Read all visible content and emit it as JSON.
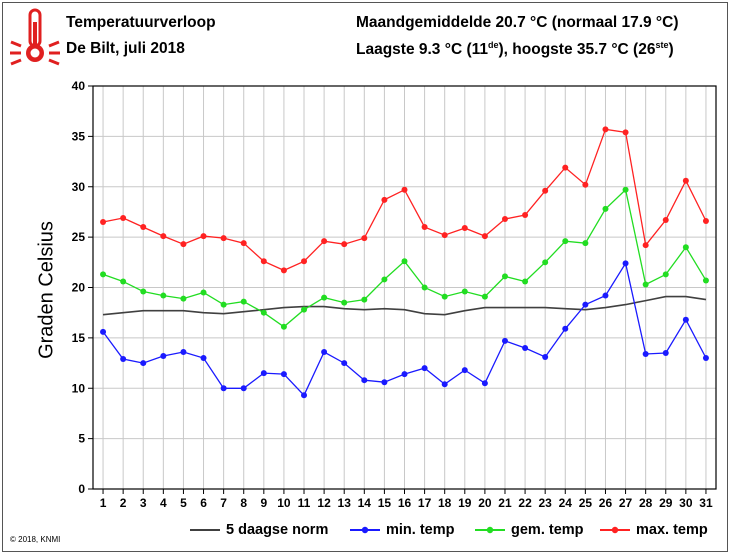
{
  "header": {
    "title": "Temperatuurverloop",
    "subtitle": "De Bilt, juli 2018",
    "stat_line1": "Maandgemiddelde 20.7 °C (normaal 17.9 °C)",
    "stat_line2_pre": "Laagste 9.3 °C (11",
    "stat_line2_sup1": "de",
    "stat_line2_mid": "), hoogste 35.7 °C (26",
    "stat_line2_sup2": "ste",
    "stat_line2_post": ")"
  },
  "copyright": "© 2018, KNMI",
  "legend": [
    {
      "label": "5 daagse norm",
      "color": "#404040",
      "marker": false
    },
    {
      "label": "min. temp",
      "color": "#1a1aff",
      "marker": true
    },
    {
      "label": "gem. temp",
      "color": "#22dd22",
      "marker": true
    },
    {
      "label": "max. temp",
      "color": "#ff2222",
      "marker": true
    }
  ],
  "icon": "thermometer-icon",
  "chart_data": {
    "type": "line",
    "ylabel": "Graden Celsius",
    "xlabel": "",
    "ylim": [
      0,
      40
    ],
    "yticks": [
      0,
      5,
      10,
      15,
      20,
      25,
      30,
      35,
      40
    ],
    "x": [
      1,
      2,
      3,
      4,
      5,
      6,
      7,
      8,
      9,
      10,
      11,
      12,
      13,
      14,
      15,
      16,
      17,
      18,
      19,
      20,
      21,
      22,
      23,
      24,
      25,
      26,
      27,
      28,
      29,
      30,
      31
    ],
    "grid": true,
    "series": [
      {
        "name": "5 daagse norm",
        "color": "#404040",
        "marker": false,
        "values": [
          17.3,
          17.5,
          17.7,
          17.7,
          17.7,
          17.5,
          17.4,
          17.6,
          17.8,
          18.0,
          18.1,
          18.1,
          17.9,
          17.8,
          17.9,
          17.8,
          17.4,
          17.3,
          17.7,
          18.0,
          18.0,
          18.0,
          18.0,
          17.9,
          17.8,
          18.0,
          18.3,
          18.7,
          19.1,
          19.1,
          18.8
        ]
      },
      {
        "name": "min. temp",
        "color": "#1a1aff",
        "marker": true,
        "values": [
          15.6,
          12.9,
          12.5,
          13.2,
          13.6,
          13.0,
          10.0,
          10.0,
          11.5,
          11.4,
          9.3,
          13.6,
          12.5,
          10.8,
          10.6,
          11.4,
          12.0,
          10.4,
          11.8,
          10.5,
          14.7,
          14.0,
          13.1,
          15.9,
          18.3,
          19.2,
          22.4,
          13.4,
          13.5,
          16.8,
          13.0
        ]
      },
      {
        "name": "gem. temp",
        "color": "#22dd22",
        "marker": true,
        "values": [
          21.3,
          20.6,
          19.6,
          19.2,
          18.9,
          19.5,
          18.3,
          18.6,
          17.5,
          16.1,
          17.8,
          19.0,
          18.5,
          18.8,
          20.8,
          22.6,
          20.0,
          19.1,
          19.6,
          19.1,
          21.1,
          20.6,
          22.5,
          24.6,
          24.4,
          27.8,
          29.7,
          20.3,
          21.3,
          24.0,
          20.7
        ]
      },
      {
        "name": "max. temp",
        "color": "#ff2222",
        "marker": true,
        "values": [
          26.5,
          26.9,
          26.0,
          25.1,
          24.3,
          25.1,
          24.9,
          24.4,
          22.6,
          21.7,
          22.6,
          24.6,
          24.3,
          24.9,
          28.7,
          29.7,
          26.0,
          25.2,
          25.9,
          25.1,
          26.8,
          27.2,
          29.6,
          31.9,
          30.2,
          35.7,
          35.4,
          24.2,
          26.7,
          30.6,
          26.6
        ]
      }
    ]
  }
}
